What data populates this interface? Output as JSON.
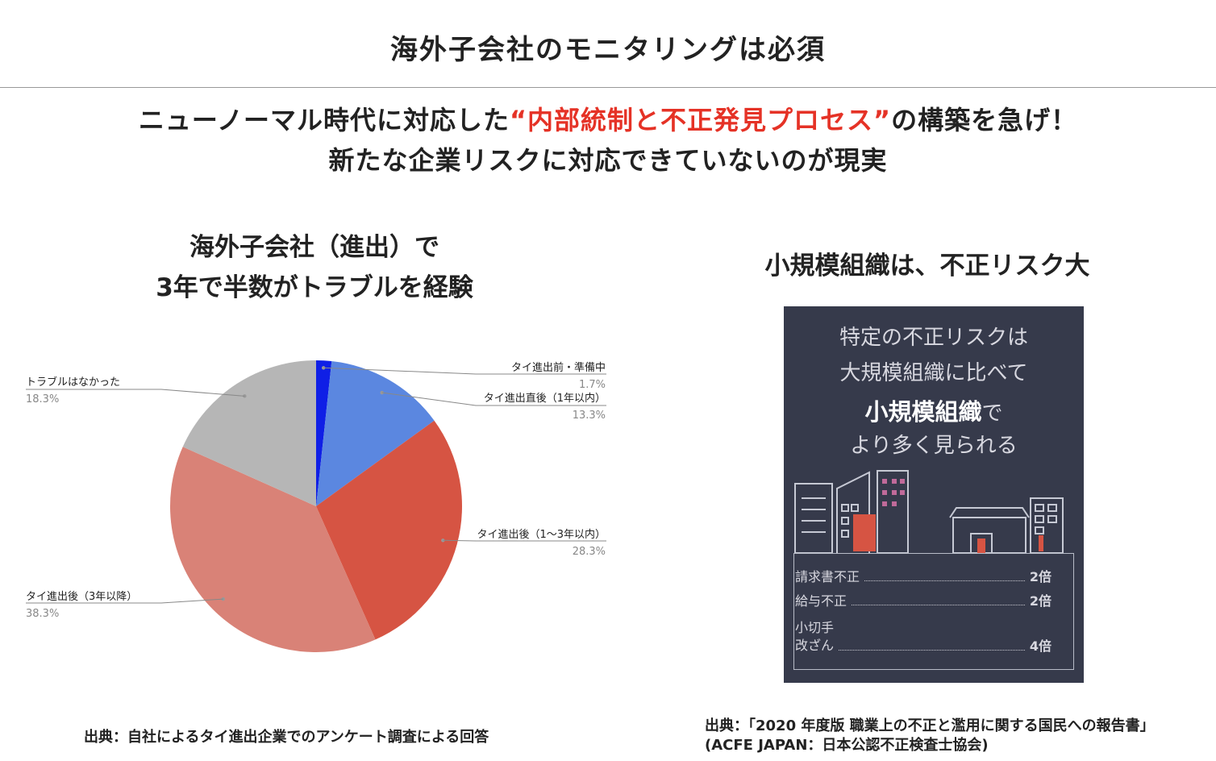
{
  "page": {
    "title": "海外子会社のモニタリングは必須",
    "headline_pre": "ニューノーマル時代に対応した",
    "headline_red": "“内部統制と不正発見プロセス”",
    "headline_post": "の構築を急げ！",
    "subheadline": "新たな企業リスクに対応できていないのが現実",
    "left_title_line1": "海外子会社（進出）で",
    "left_title_line2": "3年で半数がトラブルを経験",
    "right_title": "小規模組織は、不正リスク大",
    "left_source": "出典：自社によるタイ進出企業でのアンケート調査による回答",
    "right_source_line1": "出典：「2020 年度版 職業上の不正と濫用に関する国民への報告書」",
    "right_source_line2": "(ACFE JAPAN：日本公認不正検査士協会)"
  },
  "infographic": {
    "line1": "特定の不正リスクは",
    "line2": "大規模組織に比べて",
    "line3_strong": "小規模組織",
    "line3_rest": "で",
    "line4": "より多く見られる",
    "rows": [
      {
        "label": "請求書不正",
        "value": "2倍"
      },
      {
        "label": "給与不正",
        "value": "2倍"
      },
      {
        "label_line1": "小切手",
        "label_line2": "改ざん",
        "value": "4倍"
      }
    ]
  },
  "chart_data": {
    "type": "pie",
    "slices": [
      {
        "label": "タイ進出前・準備中",
        "value": 1.7,
        "display": "1.7%",
        "color": "#0f1fe6"
      },
      {
        "label": "タイ進出直後（1年以内）",
        "value": 13.3,
        "display": "13.3%",
        "color": "#5b87e0"
      },
      {
        "label": "タイ進出後（1〜3年以内）",
        "value": 28.3,
        "display": "28.3%",
        "color": "#d65443"
      },
      {
        "label": "タイ進出後（3年以降）",
        "value": 38.3,
        "display": "38.3%",
        "color": "#d98277"
      },
      {
        "label": "トラブルはなかった",
        "value": 18.3,
        "display": "18.3%",
        "color": "#b6b6b6"
      }
    ]
  }
}
